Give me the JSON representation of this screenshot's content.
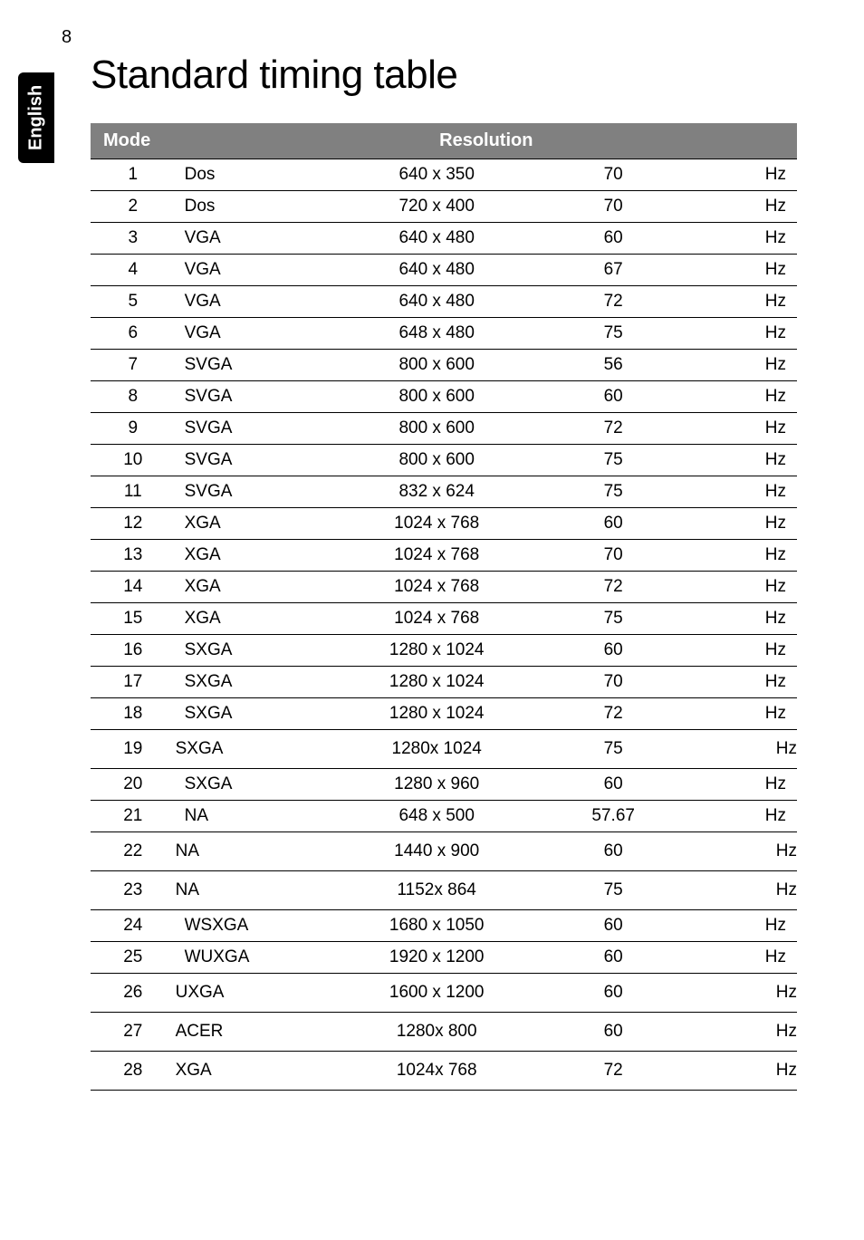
{
  "page_number": "8",
  "side_tab": "English",
  "title": "Standard timing table",
  "header": {
    "mode": "Mode",
    "resolution": "Resolution"
  },
  "rows": [
    {
      "n": "1",
      "std": "Dos",
      "res": "640 x 350",
      "rate": "70",
      "unit": "Hz",
      "tall": false
    },
    {
      "n": "2",
      "std": "Dos",
      "res": "720 x 400",
      "rate": "70",
      "unit": "Hz",
      "tall": false
    },
    {
      "n": "3",
      "std": "VGA",
      "res": "640 x 480",
      "rate": "60",
      "unit": "Hz",
      "tall": false
    },
    {
      "n": "4",
      "std": "VGA",
      "res": "640 x 480",
      "rate": "67",
      "unit": "Hz",
      "tall": false
    },
    {
      "n": "5",
      "std": "VGA",
      "res": "640 x 480",
      "rate": "72",
      "unit": "Hz",
      "tall": false
    },
    {
      "n": "6",
      "std": "VGA",
      "res": "648 x 480",
      "rate": "75",
      "unit": "Hz",
      "tall": false
    },
    {
      "n": "7",
      "std": "SVGA",
      "res": "800 x 600",
      "rate": "56",
      "unit": "Hz",
      "tall": false
    },
    {
      "n": "8",
      "std": "SVGA",
      "res": "800 x 600",
      "rate": "60",
      "unit": "Hz",
      "tall": false
    },
    {
      "n": "9",
      "std": "SVGA",
      "res": "800 x 600",
      "rate": "72",
      "unit": "Hz",
      "tall": false
    },
    {
      "n": "10",
      "std": "SVGA",
      "res": "800 x 600",
      "rate": "75",
      "unit": "Hz",
      "tall": false
    },
    {
      "n": "11",
      "std": "SVGA",
      "res": "832 x 624",
      "rate": "75",
      "unit": "Hz",
      "tall": false
    },
    {
      "n": "12",
      "std": "XGA",
      "res": "1024 x 768",
      "rate": "60",
      "unit": "Hz",
      "tall": false
    },
    {
      "n": "13",
      "std": "XGA",
      "res": "1024 x 768",
      "rate": "70",
      "unit": "Hz",
      "tall": false
    },
    {
      "n": "14",
      "std": "XGA",
      "res": "1024 x 768",
      "rate": "72",
      "unit": "Hz",
      "tall": false
    },
    {
      "n": "15",
      "std": "XGA",
      "res": "1024 x 768",
      "rate": "75",
      "unit": "Hz",
      "tall": false
    },
    {
      "n": "16",
      "std": "SXGA",
      "res": "1280 x 1024",
      "rate": "60",
      "unit": "Hz",
      "tall": false
    },
    {
      "n": "17",
      "std": "SXGA",
      "res": "1280 x 1024",
      "rate": "70",
      "unit": "Hz",
      "tall": false
    },
    {
      "n": "18",
      "std": "SXGA",
      "res": "1280 x 1024",
      "rate": "72",
      "unit": "Hz",
      "tall": false
    },
    {
      "n": "19",
      "std": "SXGA",
      "res": "1280x 1024",
      "rate": "75",
      "unit": "Hz",
      "tall": true
    },
    {
      "n": "20",
      "std": "SXGA",
      "res": "1280 x 960",
      "rate": "60",
      "unit": "Hz",
      "tall": false
    },
    {
      "n": "21",
      "std": "NA",
      "res": "648 x 500",
      "rate": "57.67",
      "unit": "Hz",
      "tall": false
    },
    {
      "n": "22",
      "std": "NA",
      "res": "1440 x 900",
      "rate": "60",
      "unit": "Hz",
      "tall": true
    },
    {
      "n": "23",
      "std": "NA",
      "res": "1152x 864",
      "rate": "75",
      "unit": "Hz",
      "tall": true
    },
    {
      "n": "24",
      "std": "WSXGA",
      "res": "1680 x 1050",
      "rate": "60",
      "unit": "Hz",
      "tall": false
    },
    {
      "n": "25",
      "std": "WUXGA",
      "res": "1920 x 1200",
      "rate": "60",
      "unit": "Hz",
      "tall": false
    },
    {
      "n": "26",
      "std": "UXGA",
      "res": "1600 x 1200",
      "rate": "60",
      "unit": "Hz",
      "tall": true
    },
    {
      "n": "27",
      "std": "ACER",
      "res": "1280x 800",
      "rate": "60",
      "unit": "Hz",
      "tall": true
    },
    {
      "n": "28",
      "std": "XGA",
      "res": "1024x 768",
      "rate": "72",
      "unit": "Hz",
      "tall": true
    }
  ]
}
